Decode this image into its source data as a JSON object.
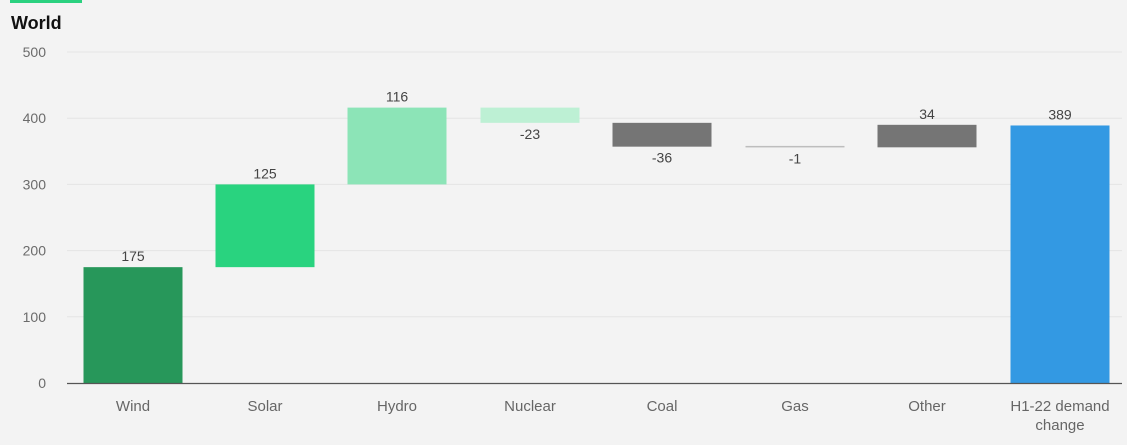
{
  "chart_data": {
    "type": "bar",
    "subtype": "waterfall",
    "title": "World",
    "ylim": [
      0,
      500
    ],
    "yticks": [
      0,
      100,
      200,
      300,
      400,
      500
    ],
    "grid": true,
    "categories": [
      "Wind",
      "Solar",
      "Hydro",
      "Nuclear",
      "Coal",
      "Gas",
      "Other",
      "H1-22 demand change"
    ],
    "values": [
      175,
      125,
      116,
      -23,
      -36,
      -1,
      34,
      389
    ],
    "labels": [
      "175",
      "125",
      "116",
      "-23",
      "-36",
      "-1",
      "34",
      "389"
    ],
    "is_total": [
      false,
      false,
      false,
      false,
      false,
      false,
      false,
      true
    ],
    "colors": [
      "#27975a",
      "#29d37f",
      "#8ce4b7",
      "#bdf0d4",
      "#757575",
      "#bdbdbd",
      "#757575",
      "#3399e3"
    ]
  },
  "colors": {
    "accent": "#2ad17f",
    "background": "#f3f3f3",
    "grid": "#e4e4e4",
    "axis": "#555555"
  }
}
